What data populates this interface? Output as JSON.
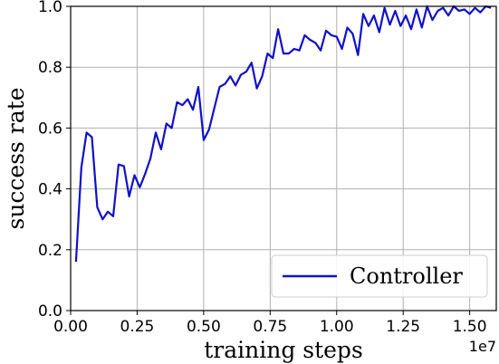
{
  "chart_data": {
    "type": "line",
    "xlabel": "training steps",
    "ylabel": "success rate",
    "x_offset_label": "1e7",
    "xlim": [
      0,
      16000000
    ],
    "ylim": [
      0,
      1.0
    ],
    "x_tick_values": [
      0,
      2500000,
      5000000,
      7500000,
      10000000,
      12500000,
      15000000
    ],
    "x_tick_labels": [
      "0.00",
      "0.25",
      "0.50",
      "0.75",
      "1.00",
      "1.25",
      "1.50"
    ],
    "y_tick_values": [
      0,
      0.2,
      0.4,
      0.6,
      0.8,
      1.0
    ],
    "y_tick_labels": [
      "0.0",
      "0.2",
      "0.4",
      "0.6",
      "0.8",
      "1.0"
    ],
    "grid": true,
    "legend_position": "bottom-right",
    "series": [
      {
        "name": "Controller",
        "color": "#1010c8",
        "x": [
          200000,
          400000,
          600000,
          800000,
          1000000,
          1200000,
          1400000,
          1600000,
          1800000,
          2000000,
          2200000,
          2400000,
          2600000,
          2800000,
          3000000,
          3200000,
          3400000,
          3600000,
          3800000,
          4000000,
          4200000,
          4400000,
          4600000,
          4800000,
          5000000,
          5200000,
          5400000,
          5600000,
          5800000,
          6000000,
          6200000,
          6400000,
          6600000,
          6800000,
          7000000,
          7200000,
          7400000,
          7600000,
          7800000,
          8000000,
          8200000,
          8400000,
          8600000,
          8800000,
          9000000,
          9200000,
          9400000,
          9600000,
          9800000,
          10000000,
          10200000,
          10400000,
          10600000,
          10800000,
          11000000,
          11200000,
          11400000,
          11600000,
          11800000,
          12000000,
          12200000,
          12400000,
          12600000,
          12800000,
          13000000,
          13200000,
          13400000,
          13600000,
          13800000,
          14000000,
          14200000,
          14400000,
          14600000,
          14800000,
          15000000,
          15200000,
          15400000,
          15600000,
          15800000
        ],
        "y": [
          0.16,
          0.47,
          0.585,
          0.57,
          0.34,
          0.3,
          0.325,
          0.31,
          0.48,
          0.475,
          0.375,
          0.445,
          0.405,
          0.45,
          0.5,
          0.585,
          0.53,
          0.615,
          0.6,
          0.685,
          0.675,
          0.695,
          0.66,
          0.735,
          0.56,
          0.595,
          0.665,
          0.735,
          0.745,
          0.77,
          0.74,
          0.775,
          0.785,
          0.815,
          0.73,
          0.77,
          0.845,
          0.83,
          0.925,
          0.845,
          0.845,
          0.86,
          0.855,
          0.905,
          0.89,
          0.88,
          0.855,
          0.92,
          0.905,
          0.9,
          0.86,
          0.93,
          0.91,
          0.84,
          0.975,
          0.935,
          0.97,
          0.915,
          0.995,
          0.94,
          0.985,
          0.935,
          0.97,
          0.925,
          0.99,
          0.93,
          1.0,
          0.955,
          0.985,
          0.995,
          0.97,
          1.0,
          0.985,
          0.99,
          0.975,
          0.995,
          0.98,
          1.0,
          0.995
        ]
      }
    ]
  }
}
